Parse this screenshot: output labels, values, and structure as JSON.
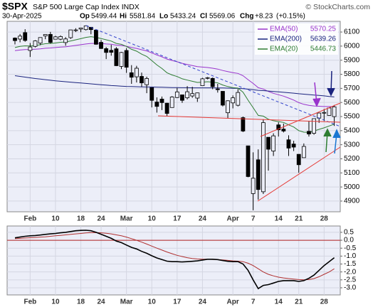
{
  "chart_data": [
    {
      "type": "candlestick",
      "title": "$SPX",
      "subtitle": "S&P 500 Large Cap Index INDX",
      "source": "© StockCharts.com",
      "date": "30-Apr-2025",
      "quote": [
        {
          "label": "Op",
          "value": 5499.44
        },
        {
          "label": "Hi",
          "value": 5581.84
        },
        {
          "label": "Lo",
          "value": 5433.24
        },
        {
          "label": "Cl",
          "value": 5569.06
        },
        {
          "label": "Chg",
          "value": 8.23,
          "value_label": "+8.23",
          "change_pct": 0.15,
          "change_pct_label": "(+0.15%)"
        }
      ],
      "categories": [
        null,
        null,
        null,
        "Feb",
        null,
        null,
        null,
        null,
        "10",
        null,
        null,
        null,
        null,
        "18",
        null,
        null,
        null,
        "24",
        null,
        null,
        null,
        null,
        "Mar",
        null,
        null,
        null,
        null,
        "10",
        null,
        null,
        null,
        null,
        "17",
        null,
        null,
        null,
        null,
        "24",
        null,
        null,
        null,
        null,
        null,
        "Apr",
        null,
        null,
        null,
        "7",
        null,
        null,
        null,
        null,
        "14",
        null,
        null,
        null,
        "21",
        null,
        null,
        null,
        null,
        "28",
        null,
        null
      ],
      "open": [
        6057,
        6050,
        6096,
        5969,
        5998,
        6021,
        6072,
        6083,
        6049,
        6049,
        6025,
        6060,
        6115,
        6121,
        6117,
        6134,
        6114,
        6027,
        5982,
        5970,
        5981,
        5856,
        5969,
        5811,
        5782,
        5785,
        5726,
        5705,
        5603,
        5624,
        5595,
        5564,
        5635,
        5654,
        5633,
        5646,
        5631,
        5719,
        5775,
        5771,
        5696,
        5679,
        5527,
        5597,
        5580,
        5492,
        5292,
        4953,
        5193,
        4966,
        5353,
        5255,
        5441,
        5411,
        5335,
        5305,
        5232,
        5208,
        5395,
        5381,
        5489,
        5529,
        5508,
        5499.44
      ],
      "high": [
        6062,
        6086,
        6120,
        6022,
        6042,
        6062,
        6084,
        6101,
        6073,
        6076,
        6064,
        6116,
        6127,
        6129,
        6147,
        6134,
        6114,
        6044,
        5993,
        6009,
        5993,
        5959,
        5986,
        5865,
        5860,
        5812,
        5783,
        5705,
        5636,
        5642,
        5597,
        5645,
        5703,
        5654,
        5716,
        5711,
        5670,
        5775,
        5781,
        5777,
        5732,
        5681,
        5615,
        5650,
        5695,
        5500,
        5292,
        5246,
        5267,
        5481,
        5353,
        5381,
        5459,
        5450,
        5367,
        5328,
        5233,
        5309,
        5470,
        5485,
        5528,
        5554,
        5565,
        5581.84
      ],
      "low": [
        6012,
        6027,
        6031,
        5923,
        5991,
        6007,
        6049,
        6019,
        6049,
        6042,
        6003,
        6051,
        6100,
        6099,
        6111,
        6084,
        6009,
        5980,
        5908,
        5932,
        5858,
        5837,
        5810,
        5732,
        5742,
        5711,
        5666,
        5565,
        5528,
        5546,
        5504,
        5564,
        5631,
        5597,
        5622,
        5633,
        5604,
        5719,
        5764,
        5694,
        5670,
        5572,
        5489,
        5558,
        5572,
        5390,
        5069,
        4835,
        4910,
        4950,
        5116,
        5220,
        5358,
        5387,
        5220,
        5255,
        5101,
        5208,
        5358,
        5371,
        5455,
        5468,
        5506,
        5433.24
      ],
      "close": [
        6039,
        6071,
        6040,
        5994,
        6037,
        6061,
        6083,
        6026,
        6066,
        6068,
        6051,
        6115,
        6115,
        6129,
        6144,
        6117,
        6013,
        5983,
        5955,
        5956,
        5861,
        5955,
        5850,
        5779,
        5843,
        5739,
        5770,
        5615,
        5572,
        5599,
        5522,
        5639,
        5675,
        5615,
        5676,
        5663,
        5668,
        5768,
        5776,
        5712,
        5693,
        5581,
        5612,
        5633,
        5671,
        5397,
        5074,
        5062,
        4982,
        5457,
        5268,
        5363,
        5406,
        5397,
        5276,
        5283,
        5158,
        5288,
        5376,
        5485,
        5525,
        5529,
        5561,
        5569.06
      ],
      "color": "#000000",
      "series": [
        {
          "name": "EMA(50)",
          "color": "#9933cc",
          "values": [
            5968,
            5972,
            5975,
            5976,
            5978,
            5981,
            5985,
            5987,
            5990,
            5993,
            5995,
            6000,
            6005,
            6010,
            6015,
            6019,
            6019,
            6018,
            6015,
            6013,
            6007,
            6005,
            5999,
            5990,
            5984,
            5974,
            5966,
            5952,
            5937,
            5924,
            5908,
            5898,
            5889,
            5878,
            5870,
            5862,
            5854,
            5851,
            5848,
            5843,
            5837,
            5827,
            5819,
            5812,
            5806,
            5790,
            5762,
            5735,
            5705,
            5695,
            5678,
            5665,
            5655,
            5645,
            5631,
            5617,
            5599,
            5587,
            5579,
            5575,
            5573,
            5571,
            5571,
            5570.25
          ]
        },
        {
          "name": "EMA(200)",
          "color": "#1a237e",
          "values": [
            5790,
            5785,
            5780,
            5775,
            5770,
            5766,
            5762,
            5758,
            5754,
            5750,
            5747,
            5744,
            5741,
            5738,
            5735,
            5732,
            5729,
            5726,
            5723,
            5720,
            5718,
            5716,
            5714,
            5713,
            5712,
            5711,
            5710,
            5710,
            5709,
            5708,
            5707,
            5706,
            5706,
            5705,
            5705,
            5704,
            5704,
            5704,
            5704,
            5704,
            5703,
            5703,
            5702,
            5701,
            5700,
            5698,
            5694,
            5690,
            5686,
            5684,
            5681,
            5678,
            5675,
            5672,
            5669,
            5666,
            5662,
            5659,
            5656,
            5653,
            5650,
            5647,
            5643,
            5639.26
          ]
        },
        {
          "name": "EMA(20)",
          "color": "#2e7d32",
          "values": [
            5990,
            5998,
            6002,
            6001,
            6004,
            6010,
            6017,
            6018,
            6022,
            6027,
            6029,
            6037,
            6045,
            6053,
            6062,
            6067,
            6062,
            6054,
            6045,
            6036,
            6019,
            6013,
            5998,
            5977,
            5964,
            5943,
            5927,
            5897,
            5866,
            5841,
            5811,
            5795,
            5784,
            5768,
            5759,
            5750,
            5742,
            5744,
            5747,
            5744,
            5739,
            5724,
            5713,
            5705,
            5702,
            5673,
            5616,
            5563,
            5508,
            5503,
            5481,
            5470,
            5464,
            5458,
            5441,
            5426,
            5400,
            5389,
            5388,
            5397,
            5409,
            5420,
            5433,
            5446.73
          ]
        }
      ],
      "ylim": [
        4824,
        6176
      ],
      "yticks": [
        4900,
        5000,
        5100,
        5200,
        5300,
        5400,
        5500,
        5600,
        5700,
        5800,
        5900,
        6000,
        6100
      ],
      "grid": true,
      "legend": "top-right"
    },
    {
      "type": "line",
      "categories": [
        null,
        null,
        null,
        "Feb",
        null,
        null,
        null,
        null,
        "10",
        null,
        null,
        null,
        null,
        "18",
        null,
        null,
        null,
        "24",
        null,
        null,
        null,
        null,
        "Mar",
        null,
        null,
        null,
        null,
        "10",
        null,
        null,
        null,
        null,
        "17",
        null,
        null,
        null,
        null,
        "24",
        null,
        null,
        null,
        null,
        null,
        "Apr",
        null,
        null,
        null,
        "7",
        null,
        null,
        null,
        null,
        "14",
        null,
        null,
        null,
        "21",
        null,
        null,
        null,
        null,
        "28",
        null,
        null
      ],
      "series": [
        {
          "color": "#000000",
          "values": [
            0.15,
            0.2,
            0.25,
            0.28,
            0.3,
            0.33,
            0.37,
            0.4,
            0.43,
            0.47,
            0.5,
            0.55,
            0.6,
            0.62,
            0.63,
            0.6,
            0.5,
            0.38,
            0.25,
            0.12,
            -0.05,
            -0.15,
            -0.3,
            -0.45,
            -0.55,
            -0.7,
            -0.82,
            -0.98,
            -1.12,
            -1.22,
            -1.32,
            -1.35,
            -1.35,
            -1.37,
            -1.35,
            -1.33,
            -1.3,
            -1.25,
            -1.2,
            -1.2,
            -1.22,
            -1.28,
            -1.33,
            -1.35,
            -1.35,
            -1.5,
            -1.9,
            -2.5,
            -3.05,
            -2.85,
            -2.8,
            -2.7,
            -2.6,
            -2.55,
            -2.55,
            -2.55,
            -2.6,
            -2.55,
            -2.4,
            -2.2,
            -1.9,
            -1.6,
            -1.35,
            -1.1
          ]
        },
        {
          "color": "#b03030",
          "values": [
            0.1,
            0.12,
            0.14,
            0.16,
            0.18,
            0.2,
            0.22,
            0.25,
            0.28,
            0.31,
            0.34,
            0.37,
            0.4,
            0.43,
            0.46,
            0.48,
            0.48,
            0.47,
            0.44,
            0.4,
            0.34,
            0.28,
            0.2,
            0.1,
            0.0,
            -0.12,
            -0.24,
            -0.37,
            -0.5,
            -0.62,
            -0.74,
            -0.85,
            -0.95,
            -1.03,
            -1.1,
            -1.15,
            -1.18,
            -1.2,
            -1.2,
            -1.21,
            -1.22,
            -1.24,
            -1.27,
            -1.3,
            -1.32,
            -1.35,
            -1.45,
            -1.6,
            -1.8,
            -2.0,
            -2.15,
            -2.25,
            -2.33,
            -2.38,
            -2.42,
            -2.45,
            -2.48,
            -2.5,
            -2.48,
            -2.42,
            -2.3,
            -2.15,
            -2.0,
            -1.8
          ]
        }
      ],
      "hline": {
        "value": 0,
        "color": "#b22222"
      },
      "ylim": [
        -3.45,
        0.9
      ],
      "yticks": [
        0.5,
        {
          "value": 0,
          "label": "0.0"
        },
        -0.5,
        {
          "value": -1,
          "label": "-1.0"
        },
        -1.5,
        {
          "value": -2,
          "label": "-2.0"
        },
        -2.5,
        {
          "value": -3,
          "label": "-3.0"
        }
      ],
      "grid": true
    }
  ]
}
